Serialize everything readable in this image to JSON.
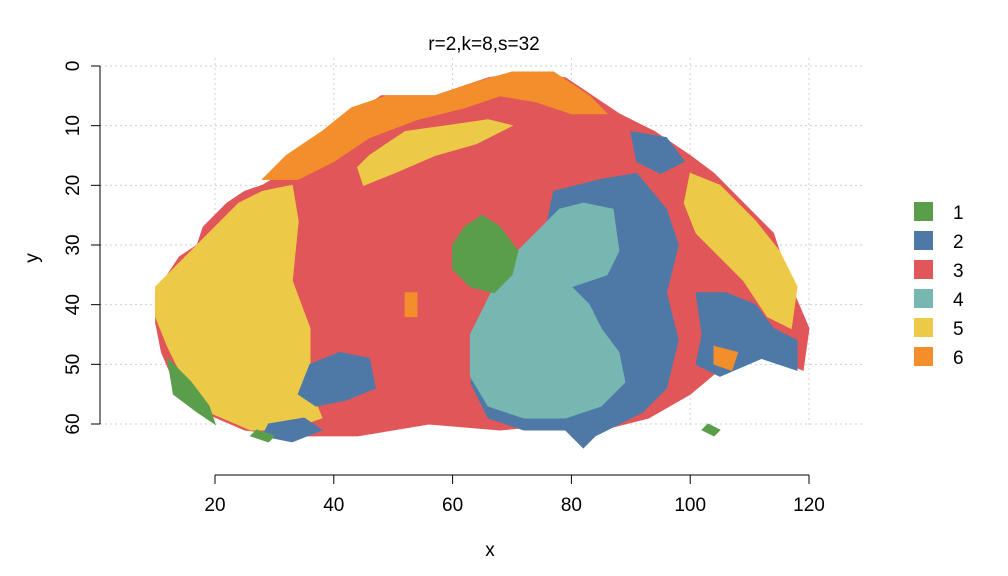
{
  "chart_data": {
    "type": "heatmap",
    "title": "r=2,k=8,s=32",
    "xlabel": "x",
    "ylabel": "y",
    "x_ticks": [
      20,
      40,
      60,
      80,
      100,
      120
    ],
    "y_ticks": [
      0,
      10,
      20,
      30,
      40,
      50,
      60
    ],
    "x_tick_labels": [
      "20",
      "40",
      "60",
      "80",
      "100",
      "120"
    ],
    "y_tick_labels": [
      "0",
      "10",
      "20",
      "30",
      "40",
      "50",
      "60"
    ],
    "xlim": [
      20,
      120
    ],
    "ylim": [
      0,
      60
    ],
    "y_axis_inverted": true,
    "grid": true,
    "legend_position": "right",
    "legend": [
      {
        "label": "1",
        "color": "#5a9e4b"
      },
      {
        "label": "2",
        "color": "#4e79a7"
      },
      {
        "label": "3",
        "color": "#e15759"
      },
      {
        "label": "4",
        "color": "#76b7b2"
      },
      {
        "label": "5",
        "color": "#edc948"
      },
      {
        "label": "6",
        "color": "#f28e2b"
      }
    ],
    "regions": [
      {
        "cluster": "3",
        "polygon": [
          [
            10,
            38
          ],
          [
            14,
            32
          ],
          [
            17,
            30
          ],
          [
            18,
            27
          ],
          [
            22,
            23
          ],
          [
            25,
            21
          ],
          [
            28,
            20
          ],
          [
            33,
            17
          ],
          [
            38,
            14
          ],
          [
            42,
            9
          ],
          [
            48,
            5
          ],
          [
            57,
            5
          ],
          [
            66,
            2
          ],
          [
            72,
            1
          ],
          [
            79,
            2
          ],
          [
            88,
            8
          ],
          [
            94,
            11
          ],
          [
            100,
            15
          ],
          [
            104,
            18
          ],
          [
            110,
            24
          ],
          [
            114,
            28
          ],
          [
            117,
            37
          ],
          [
            120,
            44
          ],
          [
            119,
            51
          ],
          [
            112,
            48
          ],
          [
            106,
            50
          ],
          [
            100,
            55
          ],
          [
            93,
            59
          ],
          [
            85,
            61
          ],
          [
            82,
            62
          ],
          [
            78,
            60
          ],
          [
            68,
            61
          ],
          [
            56,
            60
          ],
          [
            44,
            62
          ],
          [
            33,
            62
          ],
          [
            25,
            61
          ],
          [
            18,
            58
          ],
          [
            14,
            55
          ],
          [
            11,
            48
          ],
          [
            10,
            43
          ]
        ]
      },
      {
        "cluster": "6",
        "polygon": [
          [
            28,
            19
          ],
          [
            32,
            15
          ],
          [
            38,
            11
          ],
          [
            43,
            7
          ],
          [
            49,
            5
          ],
          [
            57,
            5
          ],
          [
            63,
            3
          ],
          [
            70,
            1
          ],
          [
            77,
            1
          ],
          [
            83,
            5
          ],
          [
            86,
            8
          ],
          [
            80,
            8
          ],
          [
            74,
            6
          ],
          [
            68,
            5
          ],
          [
            62,
            7
          ],
          [
            54,
            9
          ],
          [
            46,
            12
          ],
          [
            40,
            16
          ],
          [
            34,
            19
          ]
        ]
      },
      {
        "cluster": "5",
        "polygon": [
          [
            10,
            37
          ],
          [
            14,
            33
          ],
          [
            17,
            30
          ],
          [
            21,
            26
          ],
          [
            24,
            23
          ],
          [
            28,
            21
          ],
          [
            33,
            20
          ],
          [
            34,
            26
          ],
          [
            33,
            36
          ],
          [
            36,
            44
          ],
          [
            36,
            54
          ],
          [
            38,
            59
          ],
          [
            32,
            61
          ],
          [
            26,
            61
          ],
          [
            19,
            58
          ],
          [
            15,
            53
          ],
          [
            12,
            47
          ],
          [
            10,
            42
          ]
        ]
      },
      {
        "cluster": "5",
        "polygon": [
          [
            46,
            15
          ],
          [
            52,
            11
          ],
          [
            59,
            10
          ],
          [
            66,
            9
          ],
          [
            70,
            10
          ],
          [
            64,
            13
          ],
          [
            57,
            15
          ],
          [
            50,
            18
          ],
          [
            45,
            20
          ],
          [
            44,
            17
          ]
        ]
      },
      {
        "cluster": "5",
        "polygon": [
          [
            100,
            18
          ],
          [
            105,
            20
          ],
          [
            111,
            26
          ],
          [
            115,
            31
          ],
          [
            118,
            37
          ],
          [
            117,
            44
          ],
          [
            113,
            42
          ],
          [
            109,
            36
          ],
          [
            105,
            32
          ],
          [
            101,
            28
          ],
          [
            99,
            23
          ]
        ]
      },
      {
        "cluster": "5",
        "polygon": [
          [
            88,
            26
          ],
          [
            94,
            27
          ],
          [
            96,
            34
          ],
          [
            92,
            38
          ],
          [
            89,
            34
          ]
        ]
      },
      {
        "cluster": "2",
        "polygon": [
          [
            77,
            21
          ],
          [
            85,
            19
          ],
          [
            91,
            18
          ],
          [
            96,
            24
          ],
          [
            98,
            30
          ],
          [
            96,
            38
          ],
          [
            98,
            46
          ],
          [
            96,
            54
          ],
          [
            92,
            58
          ],
          [
            88,
            60
          ],
          [
            84,
            62
          ],
          [
            82,
            64
          ],
          [
            79,
            61
          ],
          [
            72,
            61
          ],
          [
            66,
            59
          ],
          [
            63,
            53
          ],
          [
            68,
            47
          ],
          [
            74,
            40
          ],
          [
            77,
            33
          ],
          [
            76,
            26
          ]
        ]
      },
      {
        "cluster": "2",
        "polygon": [
          [
            101,
            38
          ],
          [
            106,
            38
          ],
          [
            111,
            40
          ],
          [
            114,
            44
          ],
          [
            118,
            46
          ],
          [
            118,
            51
          ],
          [
            112,
            49
          ],
          [
            105,
            52
          ],
          [
            101,
            50
          ],
          [
            102,
            45
          ]
        ]
      },
      {
        "cluster": "2",
        "polygon": [
          [
            36,
            50
          ],
          [
            41,
            48
          ],
          [
            46,
            49
          ],
          [
            47,
            54
          ],
          [
            42,
            56
          ],
          [
            37,
            57
          ],
          [
            34,
            55
          ]
        ]
      },
      {
        "cluster": "2",
        "polygon": [
          [
            29,
            60
          ],
          [
            35,
            59
          ],
          [
            38,
            61
          ],
          [
            33,
            63
          ],
          [
            28,
            62
          ]
        ]
      },
      {
        "cluster": "2",
        "polygon": [
          [
            90,
            11
          ],
          [
            96,
            12
          ],
          [
            99,
            16
          ],
          [
            95,
            18
          ],
          [
            91,
            16
          ]
        ]
      },
      {
        "cluster": "4",
        "polygon": [
          [
            78,
            24
          ],
          [
            82,
            23
          ],
          [
            87,
            24
          ],
          [
            88,
            31
          ],
          [
            86,
            35
          ],
          [
            80,
            37
          ],
          [
            83,
            40
          ],
          [
            85,
            44
          ],
          [
            88,
            48
          ],
          [
            89,
            53
          ],
          [
            85,
            57
          ],
          [
            79,
            59
          ],
          [
            72,
            59
          ],
          [
            66,
            57
          ],
          [
            63,
            52
          ],
          [
            63,
            45
          ],
          [
            67,
            37
          ],
          [
            71,
            31
          ],
          [
            75,
            27
          ]
        ]
      },
      {
        "cluster": "1",
        "polygon": [
          [
            62,
            27
          ],
          [
            65,
            25
          ],
          [
            68,
            27
          ],
          [
            71,
            31
          ],
          [
            70,
            35
          ],
          [
            67,
            38
          ],
          [
            63,
            37
          ],
          [
            60,
            34
          ],
          [
            60,
            30
          ]
        ]
      },
      {
        "cluster": "1",
        "polygon": [
          [
            12,
            49
          ],
          [
            16,
            53
          ],
          [
            19,
            57
          ],
          [
            20,
            60
          ],
          [
            17,
            58
          ],
          [
            13,
            55
          ]
        ]
      },
      {
        "cluster": "1",
        "polygon": [
          [
            27,
            61
          ],
          [
            30,
            62
          ],
          [
            29,
            63
          ],
          [
            26,
            62
          ]
        ]
      },
      {
        "cluster": "1",
        "polygon": [
          [
            103,
            60
          ],
          [
            105,
            61
          ],
          [
            104,
            62
          ],
          [
            102,
            61
          ]
        ]
      },
      {
        "cluster": "6",
        "polygon": [
          [
            104,
            47
          ],
          [
            108,
            48
          ],
          [
            107,
            51
          ],
          [
            104,
            50
          ]
        ]
      },
      {
        "cluster": "6",
        "polygon": [
          [
            52,
            38
          ],
          [
            54,
            38
          ],
          [
            54,
            42
          ],
          [
            52,
            42
          ]
        ]
      }
    ]
  }
}
